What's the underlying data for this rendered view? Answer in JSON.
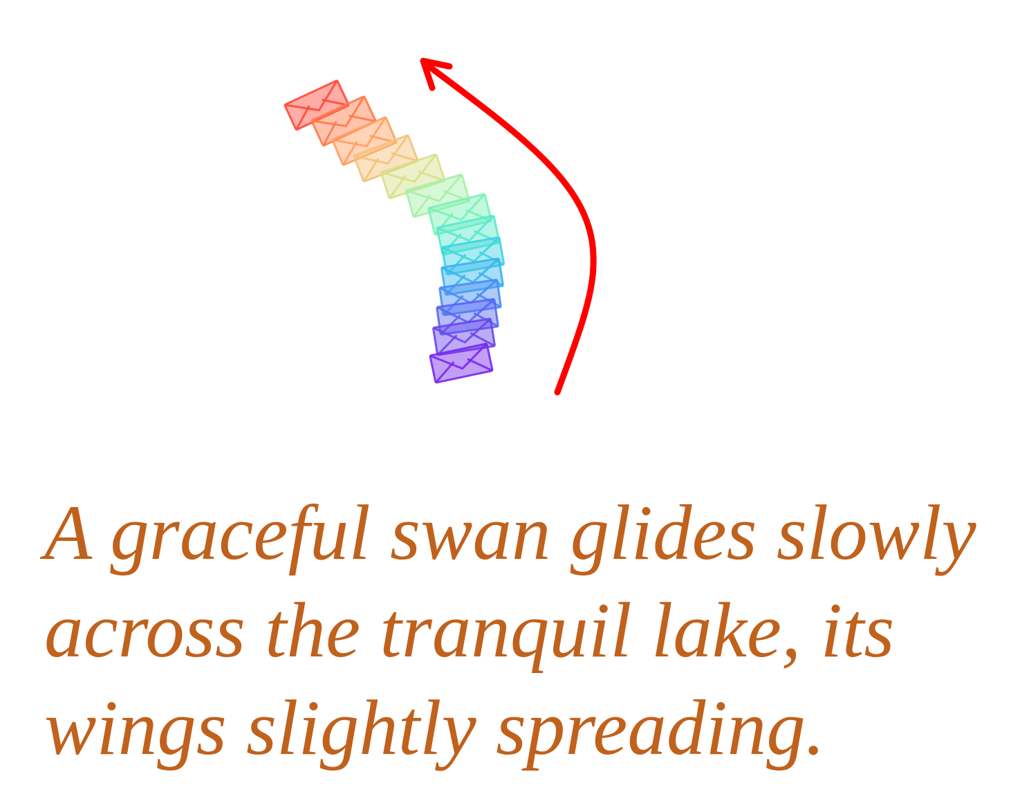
{
  "caption": "A graceful swan glides slowly\nacross the tranquil lake, its\nwings slightly spreading.",
  "motion_arrow": {
    "color": "#ff0000",
    "direction": "up-left"
  },
  "trail": {
    "icon": "envelope-icon",
    "frame_count": 14,
    "colors": [
      "#ff4a3a",
      "#ff7a4a",
      "#ffa060",
      "#f4c27a",
      "#d8e08a",
      "#a6f0a8",
      "#78f2b6",
      "#5ae8cc",
      "#3fd4e0",
      "#3ab4f0",
      "#4a8cf4",
      "#5a66f2",
      "#6a46f0",
      "#7a28ee"
    ]
  }
}
